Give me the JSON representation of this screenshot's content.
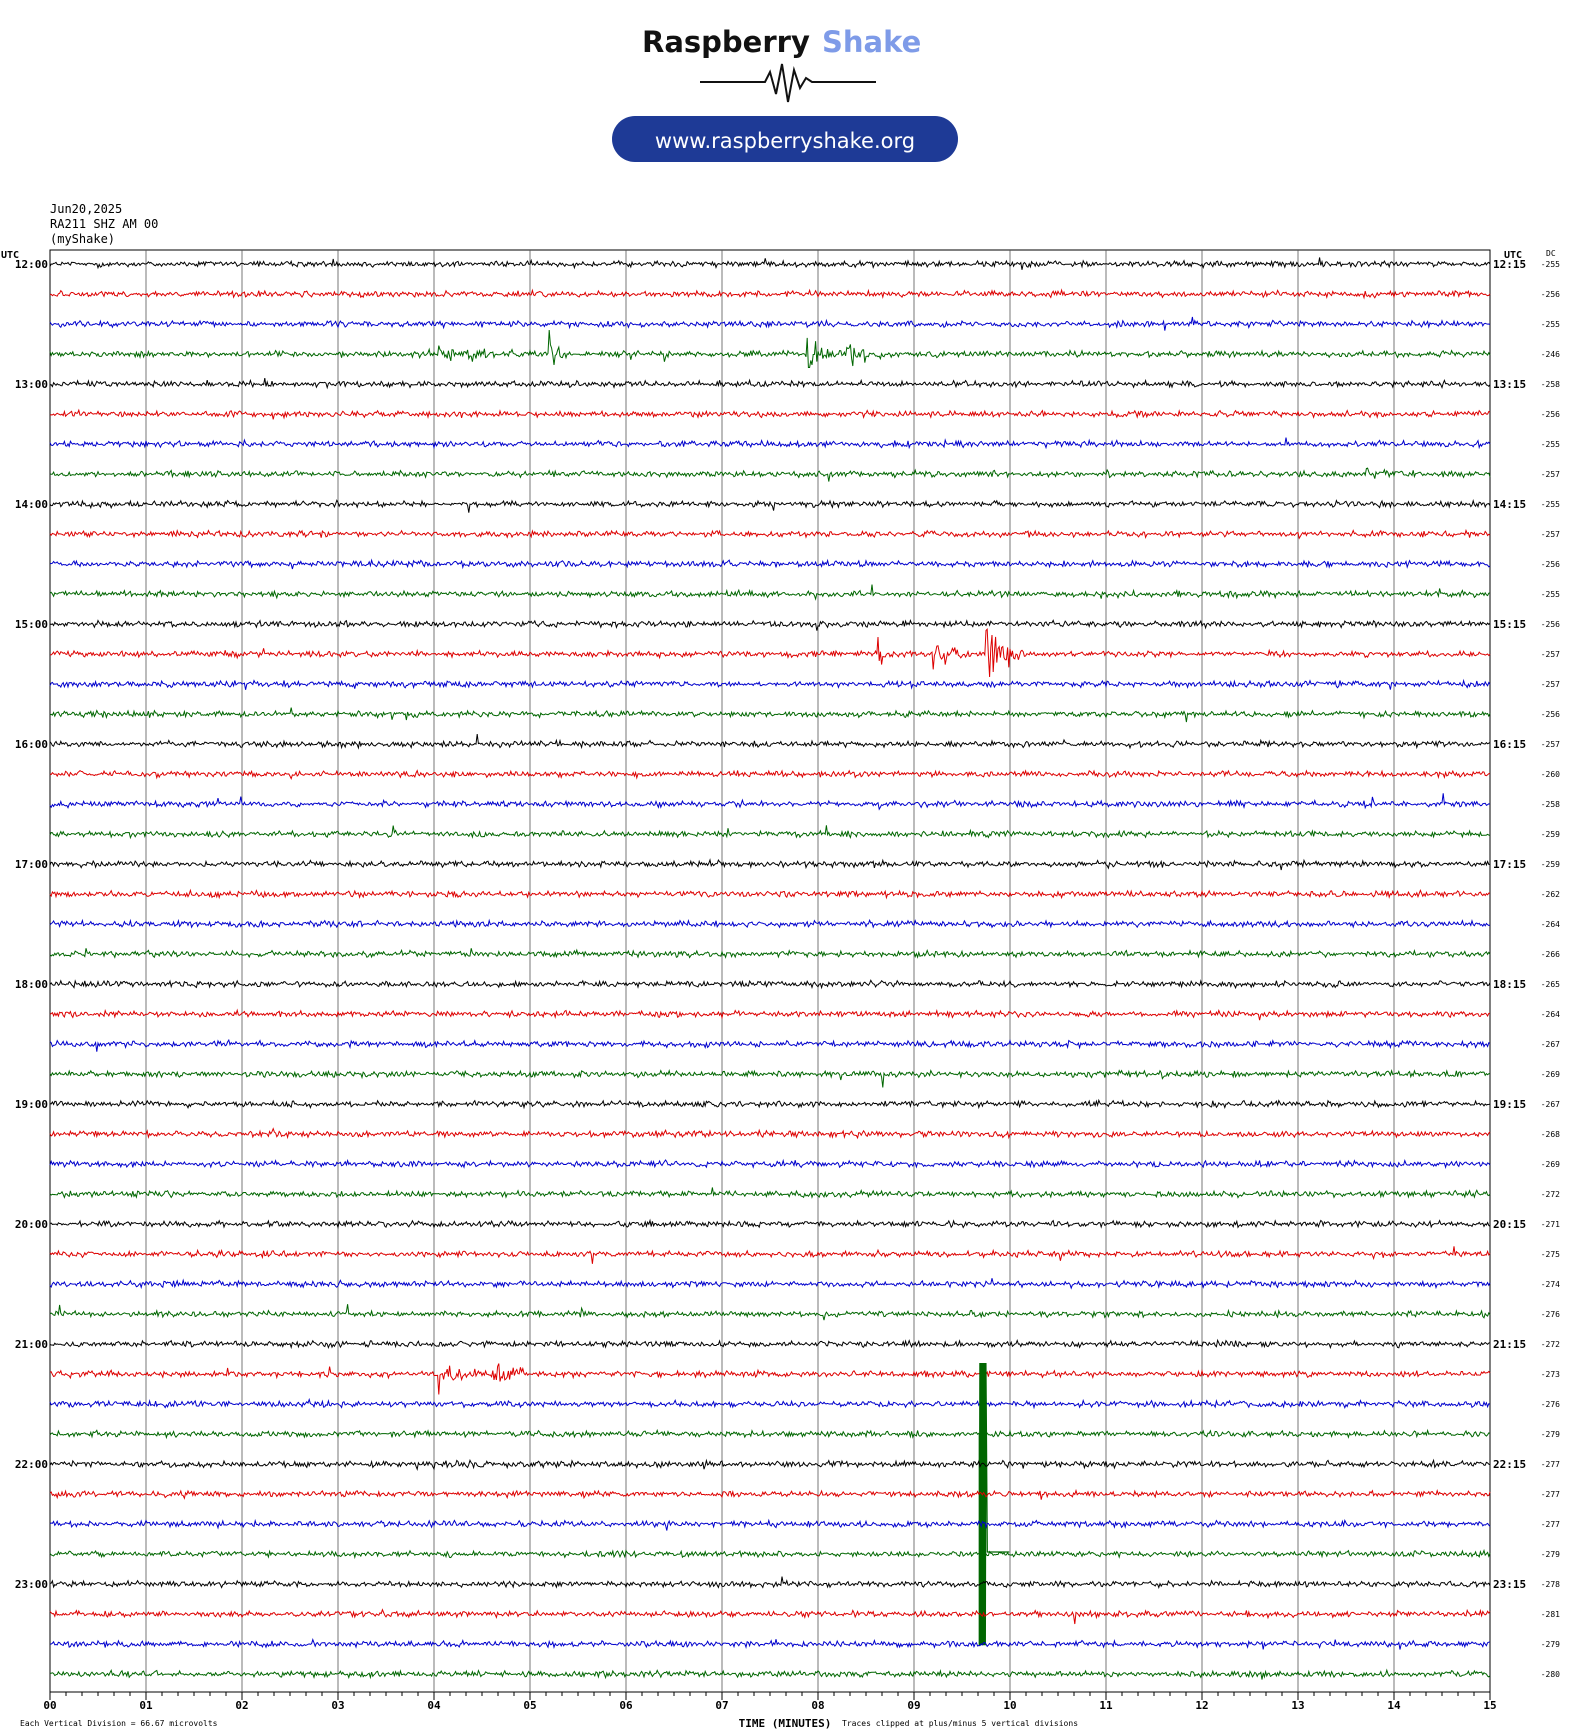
{
  "logo": {
    "brand_word1": "Raspberry",
    "brand_word2": "Shake",
    "url": "www.raspberryshake.org",
    "colors": {
      "dark": "#111111",
      "accent": "#7e9be8",
      "pill": "#1e3a96"
    }
  },
  "header": {
    "date": "Jun20,2025",
    "station": "RA211 SHZ AM 00",
    "source": "(myShake)"
  },
  "chart_data": {
    "type": "line",
    "subtype": "helicorder",
    "left_axis_title": "UTC",
    "right_axis_title": "UTC",
    "dc_title": "DC",
    "xlabel": "TIME (MINUTES)",
    "x_ticks": [
      "00",
      "01",
      "02",
      "03",
      "04",
      "05",
      "06",
      "07",
      "08",
      "09",
      "10",
      "11",
      "12",
      "13",
      "14",
      "15"
    ],
    "xlim": [
      0,
      15
    ],
    "left_labels": [
      "12:00",
      "13:00",
      "14:00",
      "15:00",
      "16:00",
      "17:00",
      "18:00",
      "19:00",
      "20:00",
      "21:00",
      "22:00",
      "23:00"
    ],
    "right_labels": [
      "12:15",
      "13:15",
      "14:15",
      "15:15",
      "16:15",
      "17:15",
      "18:15",
      "19:15",
      "20:15",
      "21:15",
      "22:15",
      "23:15"
    ],
    "trace_colors": [
      "#000000",
      "#dd0000",
      "#0000cc",
      "#006600"
    ],
    "dc_offsets": [
      -255,
      -256,
      -255,
      -246,
      -258,
      -256,
      -255,
      -257,
      -255,
      -257,
      -256,
      -255,
      -256,
      -257,
      -257,
      -256,
      -257,
      -260,
      -258,
      -259,
      -259,
      -262,
      -264,
      -266,
      -265,
      -264,
      -267,
      -269,
      -267,
      -268,
      -269,
      -272,
      -271,
      -275,
      -274,
      -276,
      -272,
      -273,
      -276,
      -279,
      -277,
      -277,
      -277,
      -279,
      -278,
      -281,
      -279,
      -280
    ],
    "events": [
      {
        "row": 3,
        "minute": 4.05,
        "amp": 0.85,
        "dur": 0.35
      },
      {
        "row": 3,
        "minute": 4.4,
        "amp": 0.5,
        "dur": 0.3
      },
      {
        "row": 3,
        "minute": 5.2,
        "amp": 1.4,
        "dur": 0.2
      },
      {
        "row": 3,
        "minute": 6.4,
        "amp": 0.4,
        "dur": 0.1
      },
      {
        "row": 3,
        "minute": 7.88,
        "amp": 2.3,
        "dur": 0.25
      },
      {
        "row": 3,
        "minute": 8.3,
        "amp": 1.1,
        "dur": 0.4
      },
      {
        "row": 7,
        "minute": 13.7,
        "amp": 0.3,
        "dur": 0.4
      },
      {
        "row": 13,
        "minute": 8.6,
        "amp": 0.9,
        "dur": 0.25
      },
      {
        "row": 13,
        "minute": 9.2,
        "amp": 1.1,
        "dur": 0.35
      },
      {
        "row": 13,
        "minute": 9.75,
        "amp": 2.2,
        "dur": 0.4
      },
      {
        "row": 37,
        "minute": 4.05,
        "amp": 1.1,
        "dur": 0.4
      },
      {
        "row": 37,
        "minute": 4.6,
        "amp": 1.1,
        "dur": 0.4
      },
      {
        "row": 40,
        "minute": 4.0,
        "amp": 0.25,
        "dur": 1.8
      },
      {
        "row": 40,
        "minute": 6.8,
        "amp": 0.2,
        "dur": 1.0
      },
      {
        "row": 39,
        "minute": 9.68,
        "amp": 5.5,
        "dur": 0.3,
        "kind": "clip"
      }
    ],
    "footer_division": "Each Vertical Division =   66.67 microvolts",
    "footer_clip": "Traces clipped at plus/minus 5 vertical divisions"
  }
}
